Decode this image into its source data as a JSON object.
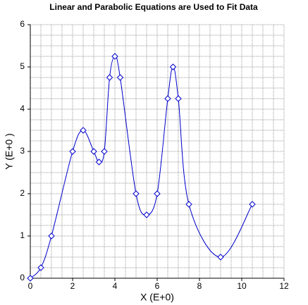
{
  "chart_data": {
    "type": "line",
    "title": "Linear and Parabolic Equations are Used to Fit Data",
    "x_label": "X (E+0)",
    "y_label": "Y (E+0 )",
    "x": [
      0,
      0.5,
      1,
      2,
      2.5,
      3,
      3.25,
      3.5,
      3.75,
      4,
      4.25,
      5,
      5.5,
      6,
      6.5,
      6.75,
      7,
      7.5,
      9,
      10.5
    ],
    "series": [
      {
        "color": "#0000cc",
        "values": [
          0,
          0.25,
          1,
          3,
          3.5,
          3,
          2.75,
          3,
          4.75,
          5.25,
          4.75,
          2,
          1.5,
          2,
          4.25,
          5,
          4.25,
          1.75,
          0.5,
          1.75
        ]
      }
    ],
    "xlim": [
      0,
      12
    ],
    "ylim": [
      0,
      6
    ],
    "xticks": [
      0,
      2,
      4,
      6,
      8,
      10,
      12
    ],
    "yticks": [
      0,
      1,
      2,
      3,
      4,
      5,
      6
    ],
    "grid": true,
    "minor_grid": {
      "x": 0.5,
      "y": 0.25
    }
  }
}
